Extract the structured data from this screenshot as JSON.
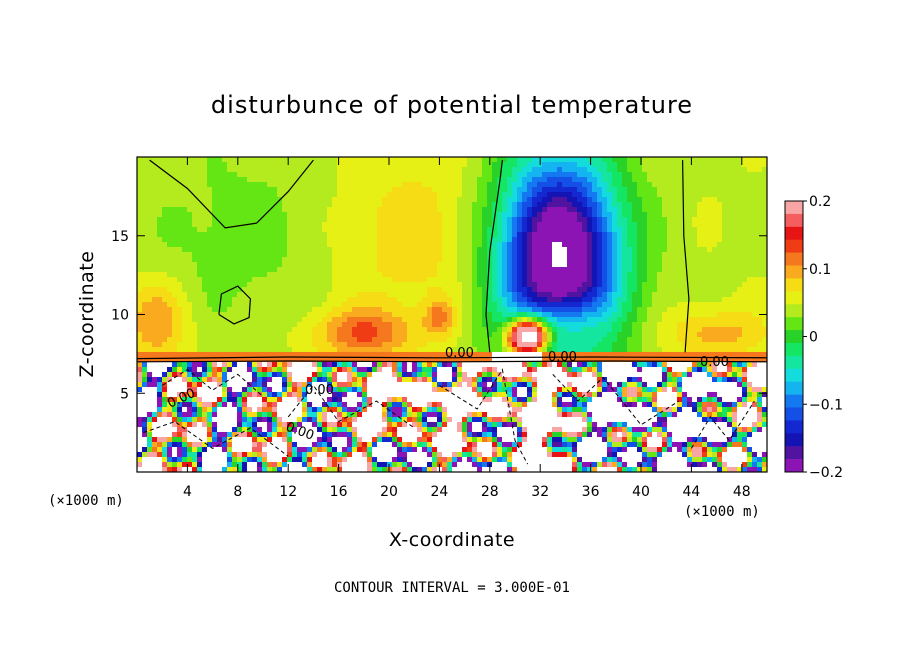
{
  "chart_data": {
    "type": "heatmap",
    "title": "disturbunce of potential temperature",
    "xlabel": "X-coordinate",
    "ylabel": "Z-coordinate",
    "x_unit_label": "(×1000 m)",
    "y_unit_label": "(×1000 m)",
    "x_ticks": [
      4,
      8,
      12,
      16,
      20,
      24,
      28,
      32,
      36,
      40,
      44,
      48
    ],
    "y_ticks": [
      5,
      10,
      15
    ],
    "xlim": [
      0,
      50
    ],
    "ylim": [
      0,
      20
    ],
    "colorbar": {
      "ticks": [
        "0.2",
        "0.1",
        "0",
        "−0.1",
        "−0.2"
      ],
      "range": [
        -0.2,
        0.2
      ],
      "colors": [
        "#f9a5a5",
        "#f55e5e",
        "#e61414",
        "#f03c14",
        "#f5781e",
        "#faaa1e",
        "#f5dc14",
        "#e6f014",
        "#b4eb1e",
        "#64e614",
        "#28d228",
        "#14e664",
        "#14e6a0",
        "#14dcdc",
        "#14b4f0",
        "#1478f0",
        "#1450e6",
        "#1428d2",
        "#1414b4",
        "#5014a0",
        "#8c14b4"
      ]
    },
    "contour_labels": [
      "0.00",
      "0.00",
      "0.00",
      "0.00",
      "0.00",
      "0.00"
    ],
    "footer": "CONTOUR INTERVAL = 3.000E-01"
  }
}
